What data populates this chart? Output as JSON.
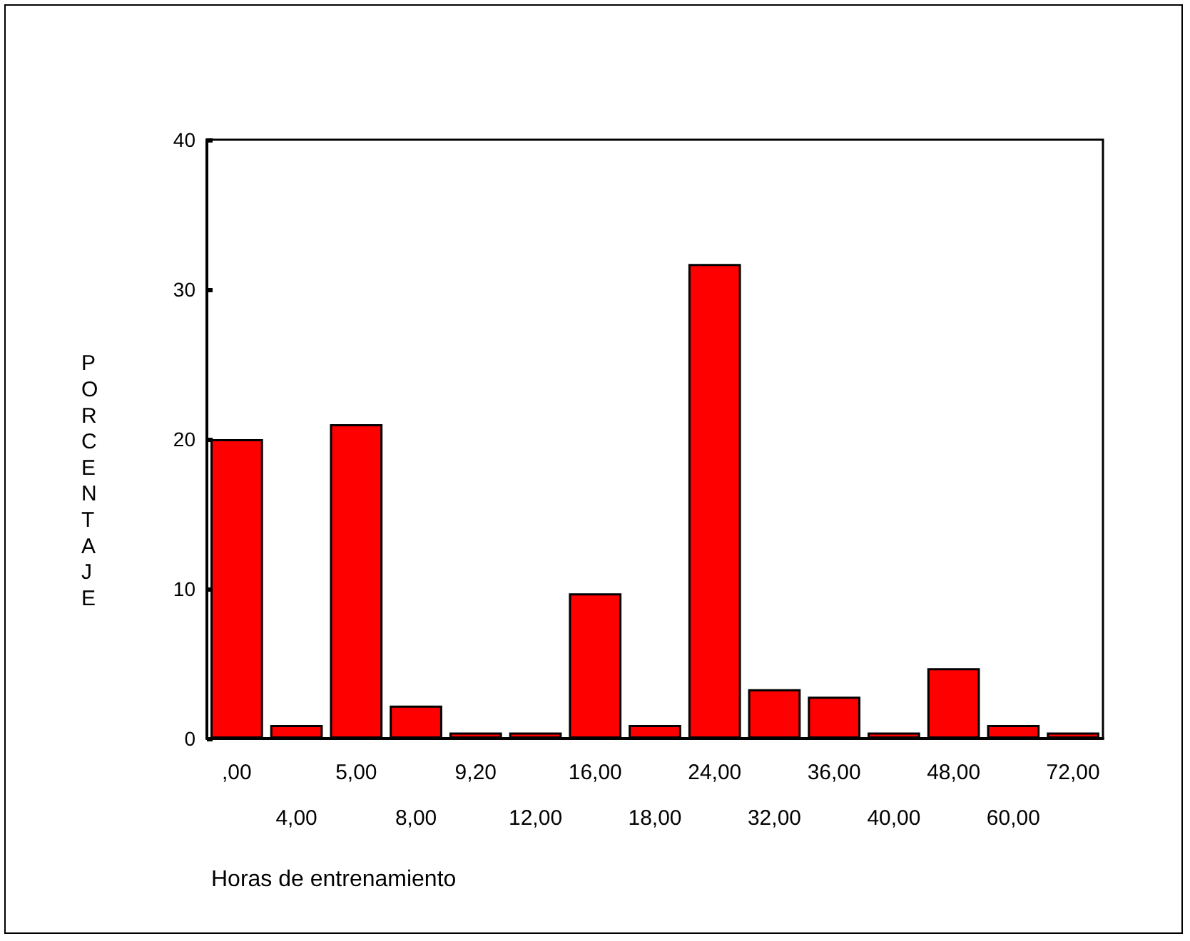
{
  "chart_data": {
    "type": "bar",
    "xlabel": "Horas de entrenamiento",
    "ylabel": "PORCENTAJE",
    "categories": [
      ",00",
      "4,00",
      "5,00",
      "8,00",
      "9,20",
      "12,00",
      "16,00",
      "18,00",
      "24,00",
      "32,00",
      "36,00",
      "40,00",
      "48,00",
      "60,00",
      "72,00"
    ],
    "values": [
      20.0,
      0.9,
      21.0,
      2.2,
      0.4,
      0.4,
      9.7,
      0.9,
      31.7,
      3.3,
      2.8,
      0.4,
      4.7,
      0.9,
      0.4
    ],
    "color": "#ff0000",
    "ylim": [
      0,
      40
    ],
    "yticks": [
      0,
      10,
      20,
      30,
      40
    ]
  }
}
